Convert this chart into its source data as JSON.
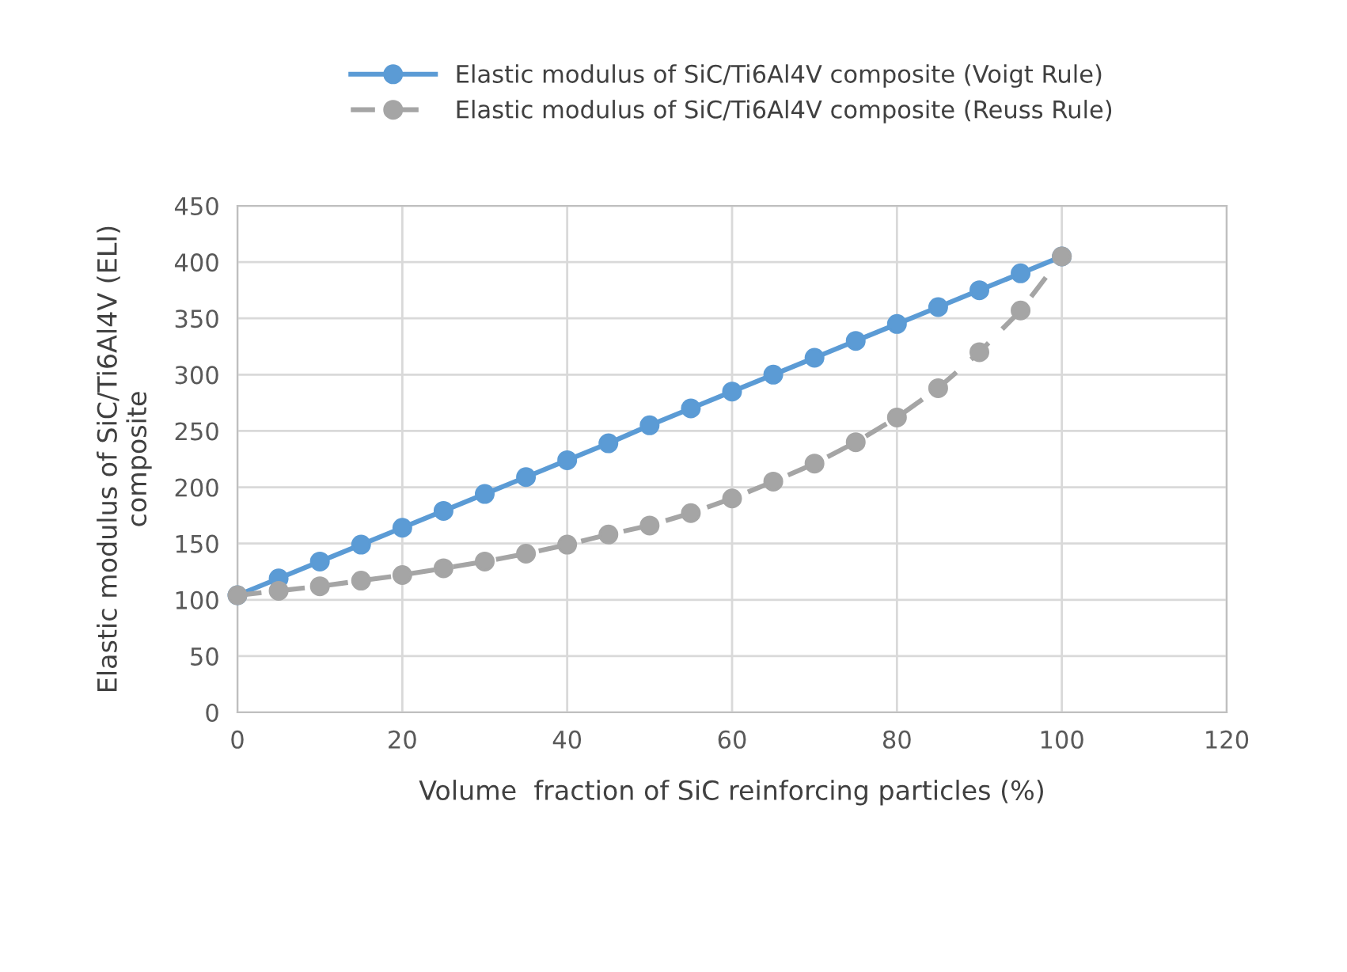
{
  "chart_data": {
    "type": "line",
    "xlabel": "Volume  fraction of SiC reinforcing particles (%)",
    "ylabel": "Elastic modulus of SiC/Ti6Al4V (ELI)\ncomposite",
    "x": [
      0,
      5,
      10,
      15,
      20,
      25,
      30,
      35,
      40,
      45,
      50,
      55,
      60,
      65,
      70,
      75,
      80,
      85,
      90,
      95,
      100
    ],
    "series": [
      {
        "name": "Elastic modulus of SiC/Ti6Al4V composite (Voigt Rule)",
        "color": "#5b9bd5",
        "line_style": "solid",
        "values": [
          104,
          119,
          134,
          149,
          164,
          179,
          194,
          209,
          224,
          239,
          255,
          270,
          285,
          300,
          315,
          330,
          345,
          360,
          375,
          390,
          405
        ]
      },
      {
        "name": "Elastic modulus of SiC/Ti6Al4V composite (Reuss Rule)",
        "color": "#a5a5a5",
        "line_style": "dashed",
        "values": [
          104,
          108,
          112,
          117,
          122,
          128,
          134,
          141,
          149,
          158,
          166,
          177,
          190,
          205,
          221,
          240,
          262,
          288,
          320,
          357,
          405
        ]
      }
    ],
    "xlim": [
      0,
      120
    ],
    "xticks": [
      0,
      20,
      40,
      60,
      80,
      100,
      120
    ],
    "ylim": [
      0,
      450
    ],
    "yticks": [
      0,
      50,
      100,
      150,
      200,
      250,
      300,
      350,
      400,
      450
    ],
    "grid": true,
    "legend": "top",
    "marker": "circle"
  }
}
